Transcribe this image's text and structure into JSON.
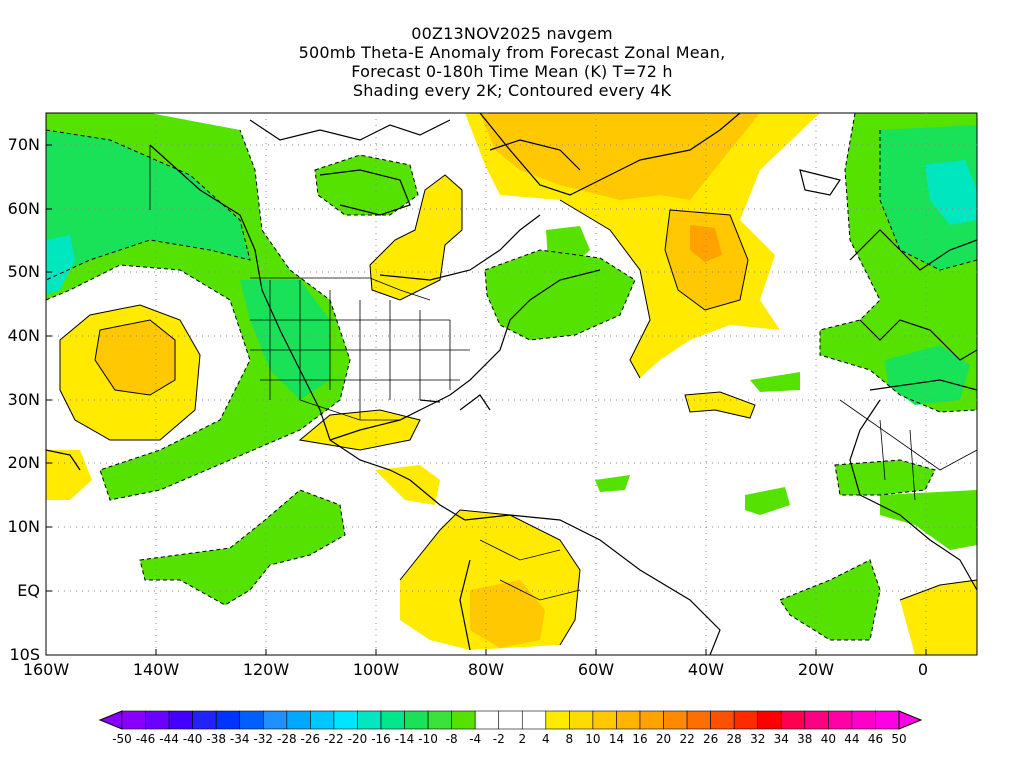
{
  "header": {
    "line1": "00Z13NOV2025 navgem",
    "line2": "500mb Theta-E Anomaly from Forecast Zonal Mean,",
    "line3": "Forecast 0-180h Time Mean (K) T=72 h",
    "line4": "Shading every 2K; Contoured every 4K"
  },
  "map": {
    "lat_labels": [
      "70N",
      "60N",
      "50N",
      "40N",
      "30N",
      "20N",
      "10N",
      "EQ",
      "10S"
    ],
    "lon_labels": [
      "160W",
      "140W",
      "120W",
      "100W",
      "80W",
      "60W",
      "40W",
      "20W",
      "0"
    ],
    "colors": {
      "green_light": "#55e200",
      "green": "#19e259",
      "teal": "#00e6bf",
      "yellow": "#ffea00",
      "yellow_orange": "#ffc800",
      "orange": "#ffa200"
    }
  },
  "colorbar": {
    "labels": [
      "-50",
      "-46",
      "-44",
      "-40",
      "-38",
      "-34",
      "-32",
      "-28",
      "-26",
      "-22",
      "-20",
      "-16",
      "-14",
      "-10",
      "-8",
      "-4",
      "-2",
      "2",
      "4",
      "8",
      "10",
      "14",
      "16",
      "20",
      "22",
      "26",
      "28",
      "32",
      "34",
      "38",
      "40",
      "44",
      "46",
      "50"
    ],
    "colors": [
      "#8a00ff",
      "#6a00ff",
      "#4400ff",
      "#2222ff",
      "#0033ff",
      "#0060ff",
      "#1e90ff",
      "#00a8ff",
      "#00c8ff",
      "#00e5ff",
      "#00e6bf",
      "#00e68a",
      "#19e259",
      "#3ae23a",
      "#55e200",
      "#ffffff",
      "#ffffff",
      "#ffffff",
      "#ffea00",
      "#ffdc00",
      "#ffc800",
      "#ffb400",
      "#ffa200",
      "#ff8a00",
      "#ff6e00",
      "#ff5000",
      "#ff2a00",
      "#ff0000",
      "#ff0050",
      "#ff0082",
      "#ff00a6",
      "#ff00c8",
      "#ff00e6"
    ]
  }
}
